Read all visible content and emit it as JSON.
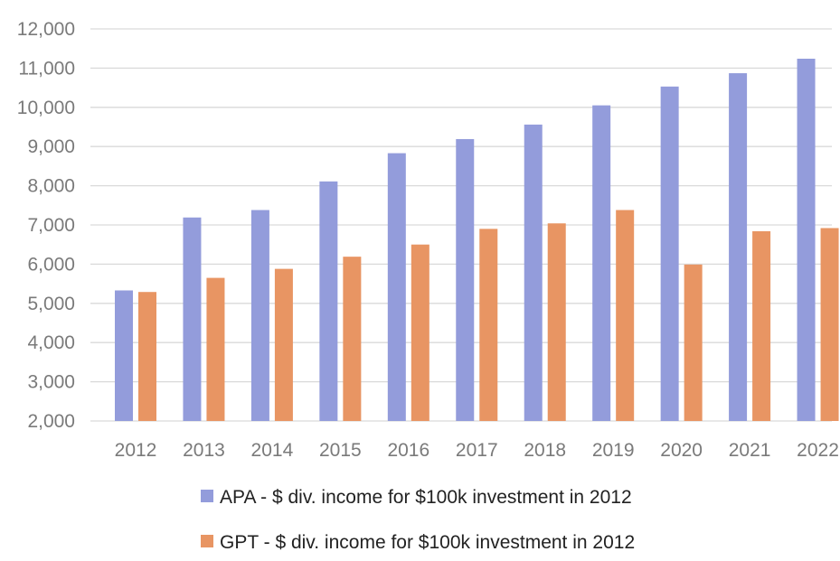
{
  "chart_data": {
    "type": "bar",
    "title": "",
    "xlabel": "",
    "ylabel": "",
    "categories": [
      "2012",
      "2013",
      "2014",
      "2015",
      "2016",
      "2017",
      "2018",
      "2019",
      "2020",
      "2021",
      "2022"
    ],
    "series": [
      {
        "name": "APA - $ div. income for $100k investment in 2012",
        "color": "#939cdb",
        "values": [
          5330,
          7190,
          7380,
          8110,
          8830,
          9190,
          9560,
          10050,
          10530,
          10870,
          11240
        ]
      },
      {
        "name": "GPT - $ div. income for $100k investment in 2012",
        "color": "#e89563",
        "values": [
          5290,
          5650,
          5880,
          6190,
          6500,
          6900,
          7040,
          7380,
          5990,
          6840,
          6920
        ]
      }
    ],
    "ylim": [
      2000,
      12000
    ],
    "yticks": [
      2000,
      3000,
      4000,
      5000,
      6000,
      7000,
      8000,
      9000,
      10000,
      11000,
      12000
    ],
    "ytick_labels": [
      "2,000",
      "3,000",
      "4,000",
      "5,000",
      "6,000",
      "7,000",
      "8,000",
      "9,000",
      "10,000",
      "11,000",
      "12,000"
    ],
    "grid": true,
    "legend_position": "bottom"
  }
}
